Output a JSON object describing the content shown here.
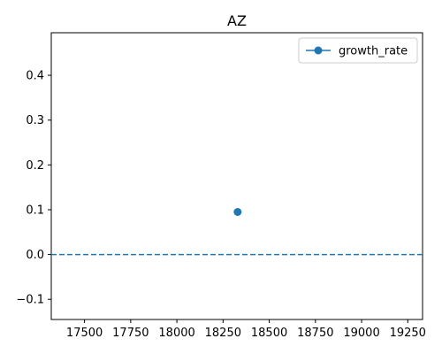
{
  "chart_data": {
    "type": "scatter",
    "title": "AZ",
    "xlabel": "",
    "ylabel": "",
    "xlim": [
      17320,
      19330
    ],
    "ylim": [
      -0.145,
      0.495
    ],
    "x_ticks": [
      17500,
      17750,
      18000,
      18250,
      18500,
      18750,
      19000,
      19250
    ],
    "y_ticks": [
      -0.1,
      0.0,
      0.1,
      0.2,
      0.3,
      0.4
    ],
    "series": [
      {
        "name": "growth_rate",
        "color": "#1f77b4",
        "marker": "circle",
        "points": [
          {
            "x": 18329,
            "y": 0.095
          }
        ]
      }
    ],
    "reference_line": {
      "y": 0.0,
      "style": "dashed",
      "color": "#1f77b4"
    },
    "legend": {
      "placement": "top-right",
      "entries": [
        "growth_rate"
      ]
    },
    "grid": false
  }
}
